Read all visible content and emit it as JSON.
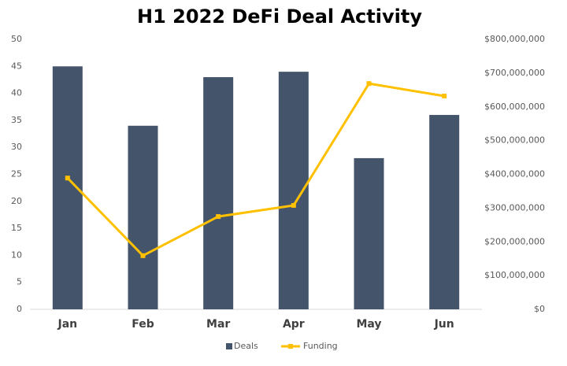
{
  "chart_data": {
    "type": "combo",
    "title": "H1 2022 DeFi Deal Activity",
    "categories": [
      "Jan",
      "Feb",
      "Mar",
      "Apr",
      "May",
      "Jun"
    ],
    "series": [
      {
        "name": "Deals",
        "type": "bar",
        "color": "#44546a",
        "values": [
          45,
          34,
          43,
          44,
          28,
          36
        ]
      },
      {
        "name": "Funding",
        "type": "line",
        "axis": "y2",
        "color": "#ffc000",
        "values": [
          389000000,
          159000000,
          275000000,
          308000000,
          669000000,
          632000000
        ]
      }
    ],
    "ylim": [
      0,
      50
    ],
    "yticks": [
      0,
      5,
      10,
      15,
      20,
      25,
      30,
      35,
      40,
      45,
      50
    ],
    "y2lim": [
      0,
      800000000
    ],
    "y2ticks": [
      {
        "value": 0,
        "label": "$0"
      },
      {
        "value": 100000000,
        "label": "$100,000,000"
      },
      {
        "value": 200000000,
        "label": "$200,000,000"
      },
      {
        "value": 300000000,
        "label": "$300,000,000"
      },
      {
        "value": 400000000,
        "label": "$400,000,000"
      },
      {
        "value": 500000000,
        "label": "$500,000,000"
      },
      {
        "value": 600000000,
        "label": "$600,000,000"
      },
      {
        "value": 700000000,
        "label": "$700,000,000"
      },
      {
        "value": 800000000,
        "label": "$800,000,000"
      }
    ],
    "grid": false,
    "legend": "bottom"
  }
}
